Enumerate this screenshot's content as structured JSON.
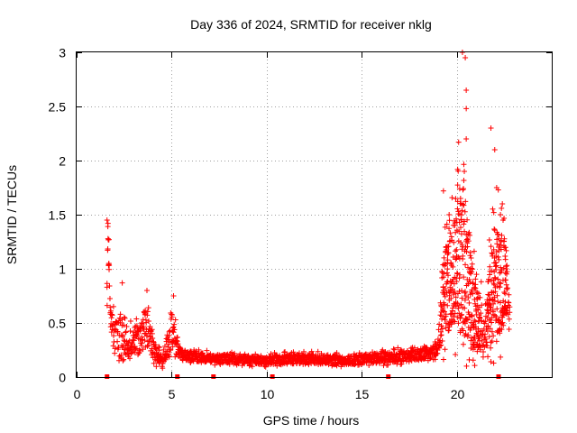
{
  "chart_data": {
    "type": "scatter",
    "title": "Day 336 of 2024, SRMTID for receiver nklg",
    "xlabel": "GPS time / hours",
    "ylabel": "SRMTID / TECUs",
    "xlim": [
      0,
      25
    ],
    "ylim": [
      0,
      3
    ],
    "xticks": [
      "0",
      "5",
      "10",
      "15",
      "20"
    ],
    "yticks": [
      "0",
      "0.5",
      "1",
      "1.5",
      "2",
      "2.5",
      "3"
    ],
    "grid": true,
    "marker": "+",
    "color": "#ff0000",
    "series": [
      {
        "name": "SRMTID",
        "envelope": [
          {
            "x": 1.6,
            "base": 0.75,
            "spread": 0.55
          },
          {
            "x": 1.65,
            "base": 1.3,
            "spread": 0.15
          },
          {
            "x": 1.8,
            "base": 0.5,
            "spread": 0.3
          },
          {
            "x": 2.0,
            "base": 0.35,
            "spread": 0.3
          },
          {
            "x": 2.4,
            "base": 0.38,
            "spread": 0.45
          },
          {
            "x": 2.8,
            "base": 0.3,
            "spread": 0.25
          },
          {
            "x": 3.2,
            "base": 0.32,
            "spread": 0.3
          },
          {
            "x": 3.7,
            "base": 0.45,
            "spread": 0.35
          },
          {
            "x": 4.0,
            "base": 0.25,
            "spread": 0.2
          },
          {
            "x": 4.5,
            "base": 0.15,
            "spread": 0.1
          },
          {
            "x": 5.0,
            "base": 0.4,
            "spread": 0.35
          },
          {
            "x": 5.5,
            "base": 0.2,
            "spread": 0.1
          },
          {
            "x": 7.0,
            "base": 0.17,
            "spread": 0.08
          },
          {
            "x": 10.0,
            "base": 0.15,
            "spread": 0.08
          },
          {
            "x": 12.0,
            "base": 0.16,
            "spread": 0.1
          },
          {
            "x": 14.0,
            "base": 0.15,
            "spread": 0.08
          },
          {
            "x": 16.0,
            "base": 0.17,
            "spread": 0.1
          },
          {
            "x": 18.0,
            "base": 0.2,
            "spread": 0.1
          },
          {
            "x": 19.0,
            "base": 0.25,
            "spread": 0.12
          },
          {
            "x": 19.3,
            "base": 0.7,
            "spread": 0.8
          },
          {
            "x": 19.8,
            "base": 0.9,
            "spread": 0.9
          },
          {
            "x": 20.3,
            "base": 1.1,
            "spread": 1.6
          },
          {
            "x": 20.6,
            "base": 0.8,
            "spread": 1.0
          },
          {
            "x": 21.0,
            "base": 0.5,
            "spread": 0.6
          },
          {
            "x": 21.5,
            "base": 0.45,
            "spread": 0.4
          },
          {
            "x": 22.0,
            "base": 0.8,
            "spread": 1.2
          },
          {
            "x": 22.5,
            "base": 0.85,
            "spread": 0.8
          },
          {
            "x": 22.8,
            "base": 0.5,
            "spread": 0.2
          }
        ],
        "highlights": [
          {
            "x": 1.6,
            "y": 1.45
          },
          {
            "x": 1.65,
            "y": 1.42
          },
          {
            "x": 1.7,
            "y": 1.27
          },
          {
            "x": 1.68,
            "y": 1.03
          },
          {
            "x": 2.4,
            "y": 0.87
          },
          {
            "x": 3.7,
            "y": 0.8
          },
          {
            "x": 5.1,
            "y": 0.75
          },
          {
            "x": 19.3,
            "y": 1.72
          },
          {
            "x": 19.6,
            "y": 1.5
          },
          {
            "x": 20.1,
            "y": 2.17
          },
          {
            "x": 20.3,
            "y": 3.0
          },
          {
            "x": 20.45,
            "y": 2.95
          },
          {
            "x": 20.5,
            "y": 2.65
          },
          {
            "x": 20.5,
            "y": 2.48
          },
          {
            "x": 20.4,
            "y": 1.9
          },
          {
            "x": 20.5,
            "y": 2.2
          },
          {
            "x": 20.2,
            "y": 1.65
          },
          {
            "x": 21.8,
            "y": 2.3
          },
          {
            "x": 22.0,
            "y": 2.1
          },
          {
            "x": 22.1,
            "y": 1.75
          },
          {
            "x": 21.95,
            "y": 1.52
          },
          {
            "x": 22.4,
            "y": 1.6
          },
          {
            "x": 22.3,
            "y": 1.5
          },
          {
            "x": 22.2,
            "y": 1.2
          },
          {
            "x": 22.6,
            "y": 1.0
          }
        ],
        "baseline_markers": [
          1.6,
          5.3,
          7.2,
          10.3,
          16.4,
          22.2
        ]
      }
    ]
  }
}
